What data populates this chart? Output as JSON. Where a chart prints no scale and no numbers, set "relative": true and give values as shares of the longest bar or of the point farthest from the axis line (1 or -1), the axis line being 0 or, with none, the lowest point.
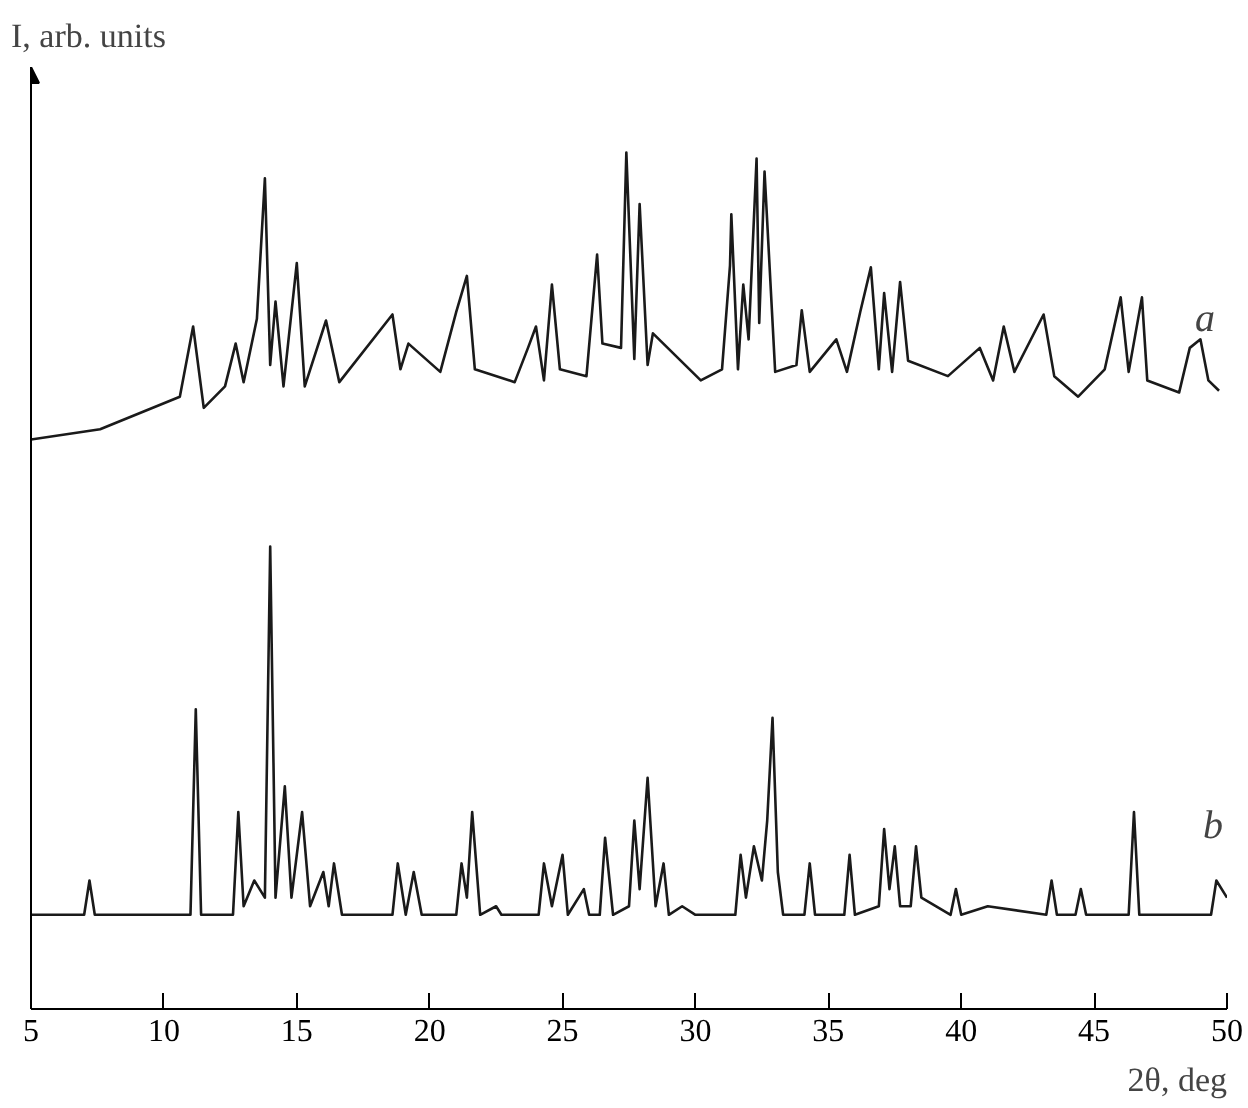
{
  "chart_data": {
    "type": "line",
    "relative": true,
    "xlabel": "2θ, deg",
    "ylabel": "I, arb. units",
    "xlim": [
      5,
      50
    ],
    "xticks": [
      5,
      10,
      15,
      20,
      25,
      30,
      35,
      40,
      45,
      50
    ],
    "grid": false,
    "series": [
      {
        "name": "a",
        "color": "#1a1a1a",
        "x": [
          5.0,
          7.6,
          10.6,
          11.1,
          11.5,
          12.3,
          12.7,
          13.0,
          13.5,
          13.8,
          14.0,
          14.2,
          14.5,
          15.0,
          15.3,
          16.1,
          16.6,
          18.6,
          18.9,
          19.2,
          20.4,
          21.0,
          21.4,
          21.7,
          23.2,
          23.7,
          24.0,
          24.3,
          24.6,
          24.9,
          25.9,
          26.3,
          26.5,
          27.2,
          27.4,
          27.7,
          27.9,
          28.2,
          28.4,
          30.2,
          31.0,
          31.3,
          31.35,
          31.6,
          31.8,
          32.0,
          32.3,
          32.4,
          32.6,
          33.0,
          33.8,
          34.0,
          34.3,
          35.3,
          35.7,
          36.2,
          36.6,
          36.9,
          37.1,
          37.4,
          37.7,
          38.0,
          39.5,
          40.7,
          41.2,
          41.6,
          42.0,
          43.1,
          43.5,
          44.4,
          45.4,
          46.0,
          46.3,
          46.8,
          47.0,
          48.2,
          48.6,
          49.0,
          49.3,
          49.7
        ],
        "values": [
          0.665,
          0.677,
          0.715,
          0.797,
          0.702,
          0.727,
          0.777,
          0.732,
          0.806,
          0.97,
          0.752,
          0.826,
          0.727,
          0.871,
          0.727,
          0.804,
          0.732,
          0.811,
          0.747,
          0.777,
          0.744,
          0.814,
          0.856,
          0.747,
          0.732,
          0.772,
          0.797,
          0.734,
          0.846,
          0.747,
          0.739,
          0.881,
          0.777,
          0.772,
          1.0,
          0.759,
          0.94,
          0.752,
          0.789,
          0.734,
          0.747,
          0.868,
          0.928,
          0.747,
          0.846,
          0.782,
          0.993,
          0.801,
          0.978,
          0.744,
          0.752,
          0.816,
          0.744,
          0.782,
          0.744,
          0.814,
          0.866,
          0.747,
          0.836,
          0.744,
          0.849,
          0.757,
          0.739,
          0.772,
          0.734,
          0.797,
          0.744,
          0.811,
          0.739,
          0.715,
          0.747,
          0.831,
          0.744,
          0.831,
          0.734,
          0.72,
          0.772,
          0.782,
          0.734,
          0.722
        ]
      },
      {
        "name": "b",
        "color": "#1a1a1a",
        "x": [
          5.0,
          7.0,
          7.2,
          7.4,
          11.0,
          11.2,
          11.4,
          12.6,
          12.8,
          13.0,
          13.4,
          13.8,
          14.0,
          14.2,
          14.55,
          14.8,
          15.2,
          15.5,
          16.0,
          16.2,
          16.4,
          16.7,
          18.6,
          18.8,
          19.1,
          19.4,
          19.7,
          21.0,
          21.2,
          21.4,
          21.6,
          21.9,
          22.5,
          22.7,
          24.1,
          24.3,
          24.6,
          25.0,
          25.2,
          25.8,
          26.0,
          26.4,
          26.6,
          26.9,
          27.5,
          27.7,
          27.9,
          28.2,
          28.5,
          28.8,
          29.0,
          29.5,
          30.0,
          31.5,
          31.7,
          31.9,
          32.2,
          32.5,
          32.7,
          32.9,
          33.1,
          33.3,
          34.1,
          34.3,
          34.5,
          35.6,
          35.8,
          36.0,
          36.9,
          37.1,
          37.3,
          37.5,
          37.7,
          38.1,
          38.3,
          38.5,
          39.6,
          39.8,
          40.0,
          41.0,
          43.2,
          43.4,
          43.6,
          44.3,
          44.5,
          44.7,
          46.3,
          46.5,
          46.7,
          49.4,
          49.6,
          50.0
        ],
        "values": [
          0.11,
          0.11,
          0.15,
          0.11,
          0.11,
          0.35,
          0.11,
          0.11,
          0.23,
          0.12,
          0.15,
          0.13,
          0.54,
          0.13,
          0.26,
          0.13,
          0.23,
          0.12,
          0.16,
          0.12,
          0.17,
          0.11,
          0.11,
          0.17,
          0.11,
          0.16,
          0.11,
          0.11,
          0.17,
          0.13,
          0.23,
          0.11,
          0.12,
          0.11,
          0.11,
          0.17,
          0.12,
          0.18,
          0.11,
          0.14,
          0.11,
          0.11,
          0.2,
          0.11,
          0.12,
          0.22,
          0.14,
          0.27,
          0.12,
          0.17,
          0.11,
          0.12,
          0.11,
          0.11,
          0.18,
          0.13,
          0.19,
          0.15,
          0.22,
          0.34,
          0.16,
          0.11,
          0.11,
          0.17,
          0.11,
          0.11,
          0.18,
          0.11,
          0.12,
          0.21,
          0.14,
          0.19,
          0.12,
          0.12,
          0.19,
          0.13,
          0.11,
          0.14,
          0.11,
          0.12,
          0.11,
          0.15,
          0.11,
          0.11,
          0.14,
          0.11,
          0.11,
          0.23,
          0.11,
          0.11,
          0.15,
          0.13
        ]
      }
    ]
  }
}
